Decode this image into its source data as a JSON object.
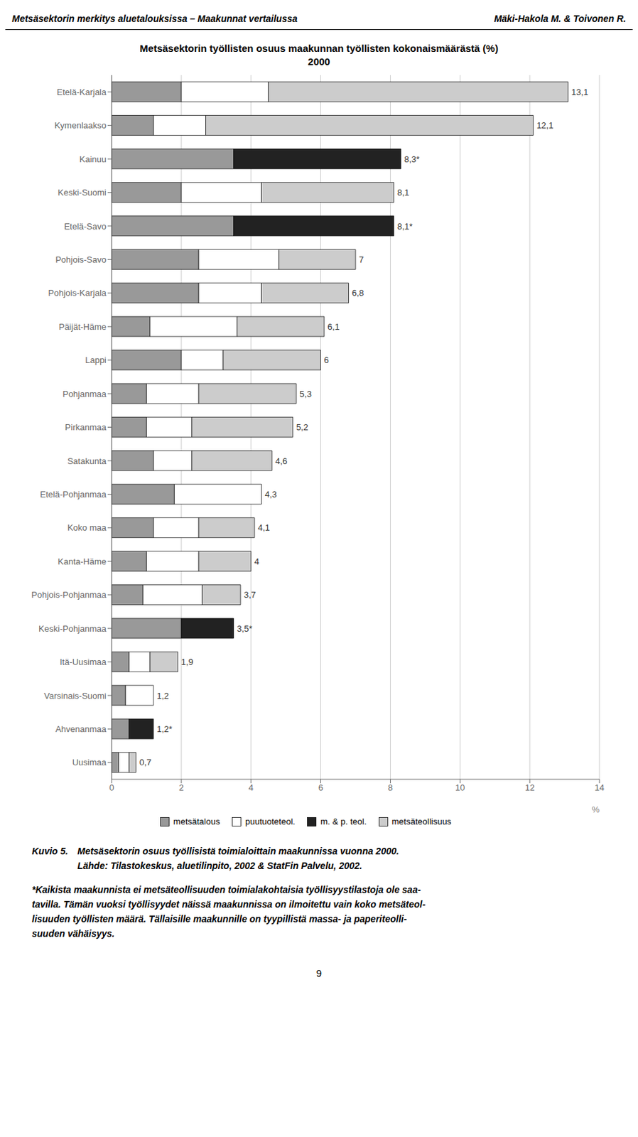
{
  "chart_data": {
    "type": "bar",
    "orientation": "horizontal",
    "stacked": true,
    "title": "Metsäsektorin työllisten osuus maakunnan työllisten kokonaismäärästä (%)",
    "subtitle": "2000",
    "x_label": "%",
    "categories": [
      "Etelä-Karjala",
      "Kymenlaakso",
      "Kainuu",
      "Keski-Suomi",
      "Etelä-Savo",
      "Pohjois-Savo",
      "Pohjois-Karjala",
      "Päijät-Häme",
      "Lappi",
      "Pohjanmaa",
      "Pirkanmaa",
      "Satakunta",
      "Etelä-Pohjanmaa",
      "Koko maa",
      "Kanta-Häme",
      "Pohjois-Pohjanmaa",
      "Keski-Pohjanmaa",
      "Itä-Uusimaa",
      "Varsinais-Suomi",
      "Ahvenanmaa",
      "Uusimaa"
    ],
    "series": [
      {
        "name": "metsätalous",
        "color": "#999999",
        "values": [
          2.0,
          1.2,
          3.5,
          2.0,
          3.5,
          2.5,
          2.5,
          1.1,
          2.0,
          1.0,
          1.0,
          1.2,
          1.8,
          1.2,
          1.0,
          0.9,
          2.0,
          0.5,
          0.4,
          0.5,
          0.2
        ]
      },
      {
        "name": "puutuoteteol.",
        "color": "#ffffff",
        "values": [
          2.5,
          1.5,
          0.0,
          2.3,
          0.0,
          2.3,
          1.8,
          2.5,
          1.2,
          1.5,
          1.3,
          1.1,
          2.5,
          1.3,
          1.5,
          1.7,
          0.0,
          0.6,
          0.8,
          0.0,
          0.3
        ]
      },
      {
        "name": "m. & p. teol.",
        "color": "#222222",
        "values": [
          0.0,
          0.0,
          4.8,
          0.0,
          4.6,
          0.0,
          0.0,
          0.0,
          0.0,
          0.0,
          0.0,
          0.0,
          0.0,
          0.0,
          0.0,
          0.0,
          1.5,
          0.0,
          0.0,
          0.7,
          0.0
        ]
      },
      {
        "name": "metsäteollisuus",
        "color": "#cccccc",
        "values": [
          8.6,
          9.4,
          0.0,
          3.8,
          0.0,
          2.2,
          2.5,
          2.5,
          2.8,
          2.8,
          2.9,
          2.3,
          0.0,
          1.6,
          1.5,
          1.1,
          0.0,
          0.8,
          0.0,
          0.0,
          0.2
        ]
      }
    ],
    "totals": [
      13.1,
      12.1,
      8.3,
      8.1,
      8.1,
      7.0,
      6.8,
      6.1,
      6.0,
      5.3,
      5.2,
      4.6,
      4.3,
      4.1,
      4.0,
      3.7,
      3.5,
      1.9,
      1.2,
      1.2,
      0.7
    ],
    "total_labels": [
      "13,1",
      "12,1",
      "8,3*",
      "8,1",
      "8,1*",
      "7",
      "6,8",
      "6,1",
      "6",
      "5,3",
      "5,2",
      "4,6",
      "4,3",
      "4,1",
      "4",
      "3,7",
      "3,5*",
      "1,9",
      "1,2",
      "1,2*",
      "0,7"
    ],
    "xlim": [
      0,
      14
    ],
    "xticks": [
      0,
      2,
      4,
      6,
      8,
      10,
      12,
      14
    ],
    "grid": true,
    "legend": "bottom",
    "annotations": [
      "Metsäsektorin merkitys aluetalouksissa – Maakunnat vertailussa",
      "Mäki-Hakola M. & Toivonen R.",
      "Kuvio 5.",
      "Metsäsektorin osuus työllisistä toimialoittain maakunnissa vuonna 2000.",
      "Lähde: Tilastokeskus, aluetilinpito, 2002 & StatFin Palvelu, 2002.",
      "*Kaikista maakunnista ei metsäteollisuuden toimialakohtaisia työllisyystilastoja ole saa-",
      "tavilla. Tämän vuoksi työllisyydet näissä maakunnissa on ilmoitettu vain koko metsäteol-",
      "lisuuden työllisten määrä. Tällaisille maakunnille on tyypillistä massa- ja paperiteolli-",
      "suuden vähäisyys.",
      "9"
    ]
  }
}
